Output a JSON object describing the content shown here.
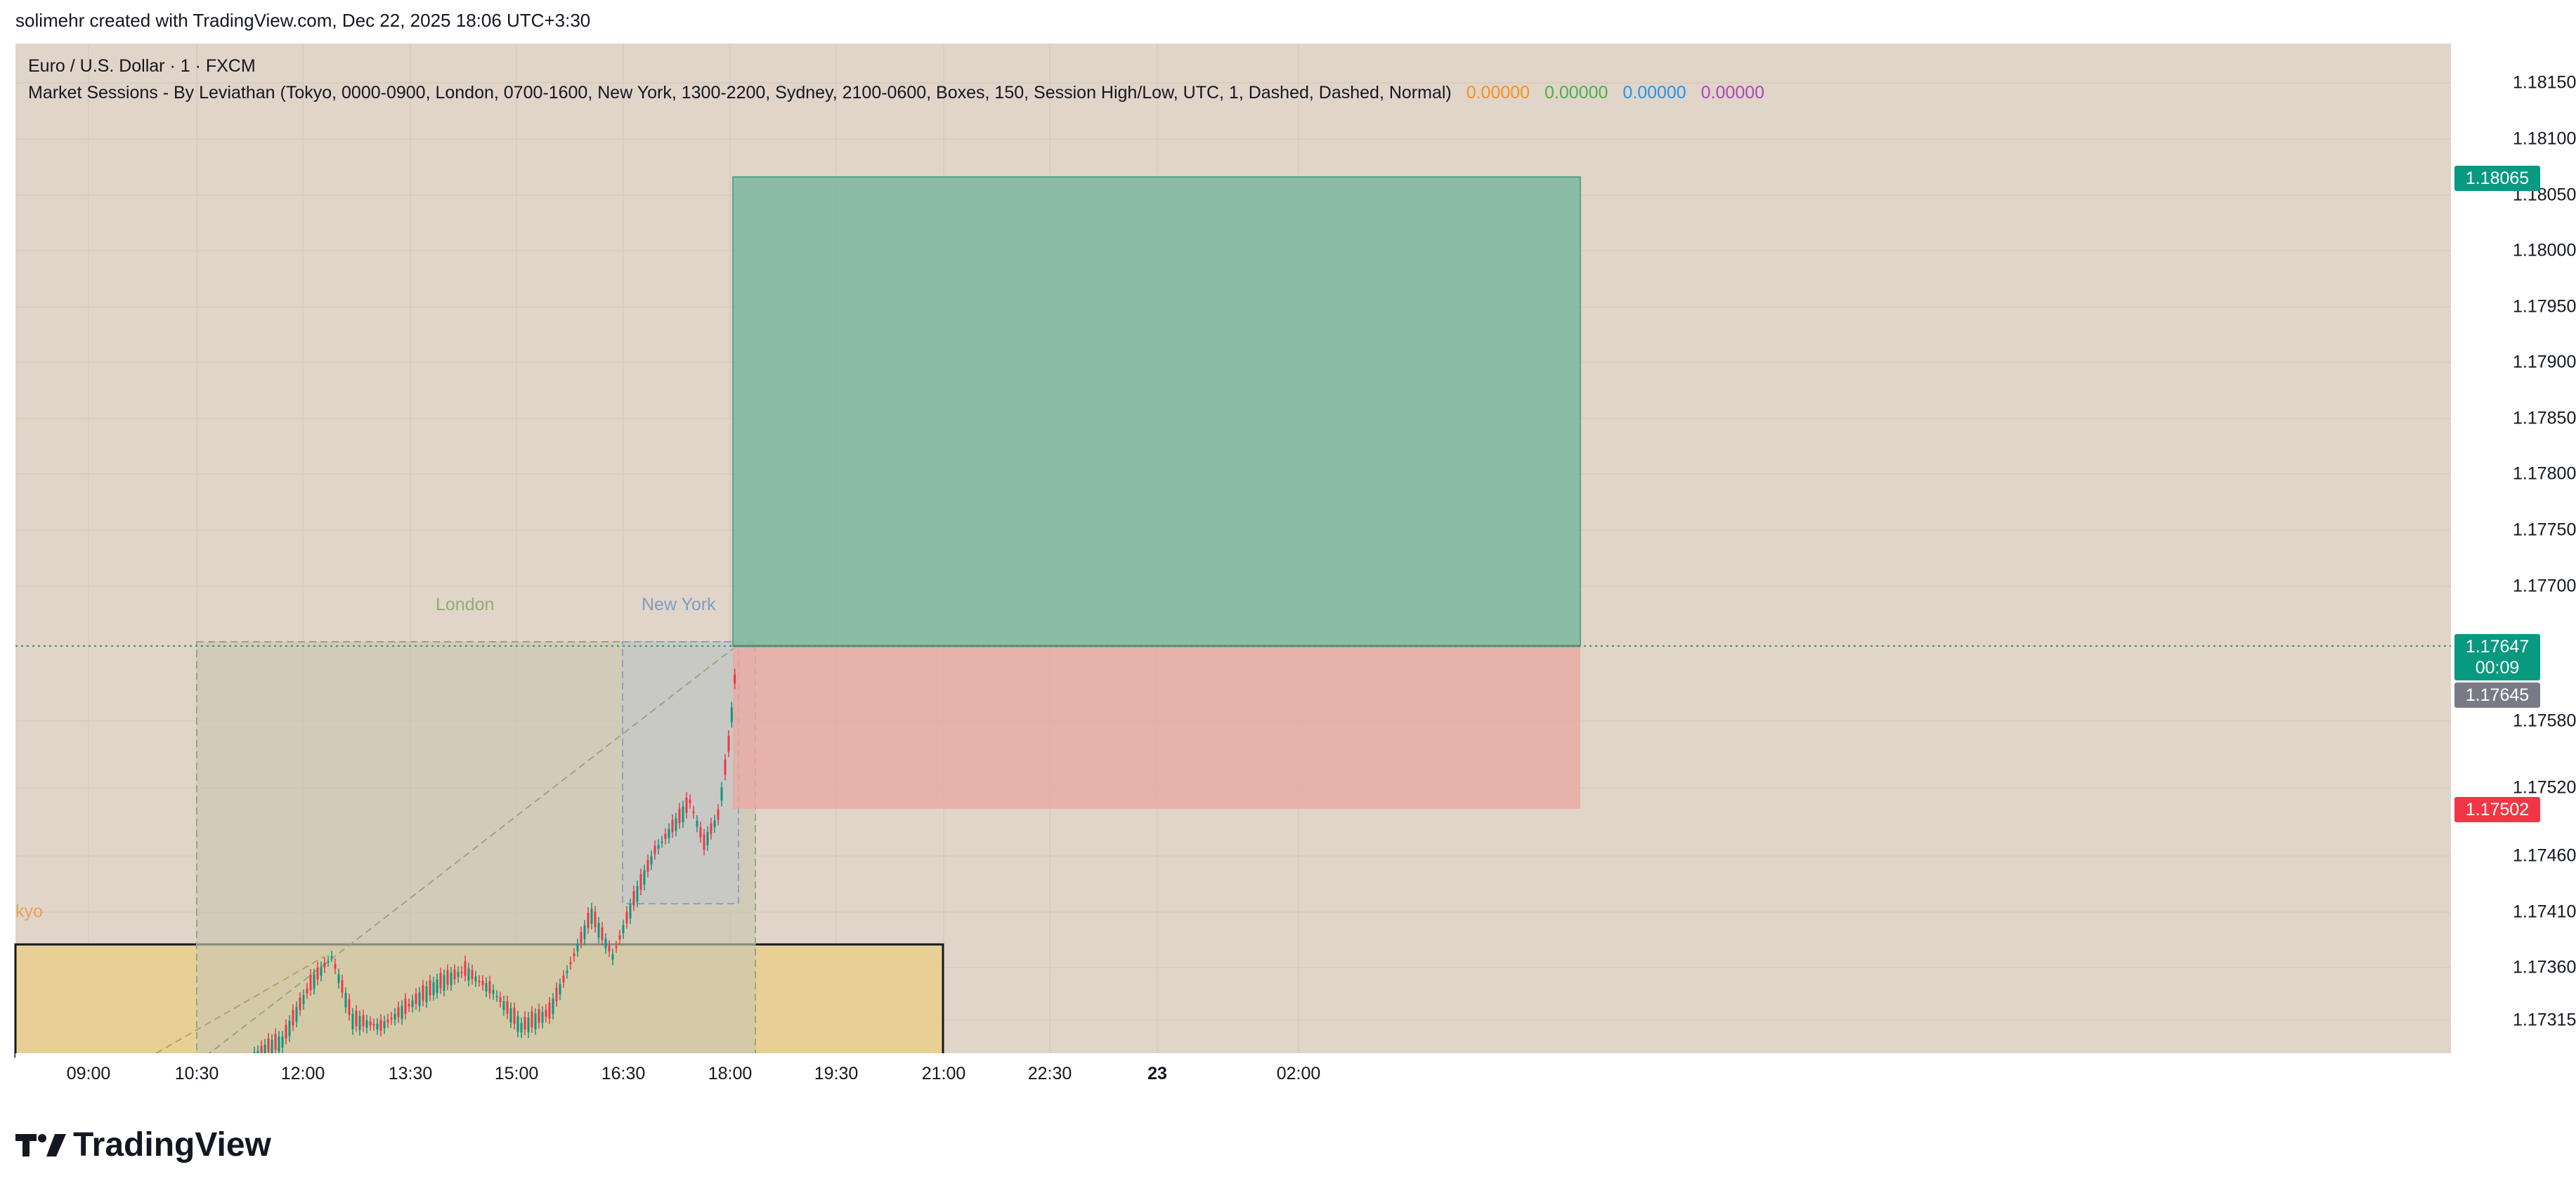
{
  "header": {
    "attribution": "solimehr created with TradingView.com, Dec 22, 2025 18:06 UTC+3:30"
  },
  "legend": {
    "symbol": "Euro / U.S. Dollar · 1 · FXCM",
    "indicator": "Market Sessions - By Leviathan (Tokyo, 0000-0900, London, 0700-1600, New York, 1300-2200, Sydney, 2100-0600, Boxes, 150, Session High/Low, UTC, 1, Dashed, Dashed, Normal)",
    "values": [
      {
        "text": "0.00000",
        "color": "#f7931a"
      },
      {
        "text": "0.00000",
        "color": "#4caf50"
      },
      {
        "text": "0.00000",
        "color": "#2196f3"
      },
      {
        "text": "0.00000",
        "color": "#ab47bc"
      }
    ]
  },
  "price_axis": [
    "1.18150",
    "1.18100",
    "1.18050",
    "1.18000",
    "1.17950",
    "1.17900",
    "1.17850",
    "1.17800",
    "1.17750",
    "1.17700",
    "1.17580",
    "1.17520",
    "1.17460",
    "1.17410",
    "1.17360",
    "1.17315"
  ],
  "price_tags": {
    "target": {
      "text": "1.18065",
      "color": "#089981"
    },
    "last": {
      "text": "1.17647",
      "countdown": "00:09",
      "color": "#089981"
    },
    "stop_line": {
      "text": "1.17645",
      "color": "#787b86"
    },
    "stop": {
      "text": "1.17502",
      "color": "#f23645"
    }
  },
  "time_axis": [
    "09:00",
    "10:30",
    "12:00",
    "13:30",
    "15:00",
    "16:30",
    "18:00",
    "19:30",
    "21:00",
    "22:30",
    "23",
    "02:00"
  ],
  "sessions": {
    "london": {
      "label": "London",
      "color": "#8fae74"
    },
    "new_york": {
      "label": "New York",
      "color": "#7e9ec2"
    },
    "tokyo": {
      "label": "kyo",
      "color": "#e8a35a"
    }
  },
  "position": {
    "type": "long",
    "entry": 1.17647,
    "target": 1.18065,
    "stop": 1.17502
  },
  "footer": {
    "brand": "TradingView"
  }
}
